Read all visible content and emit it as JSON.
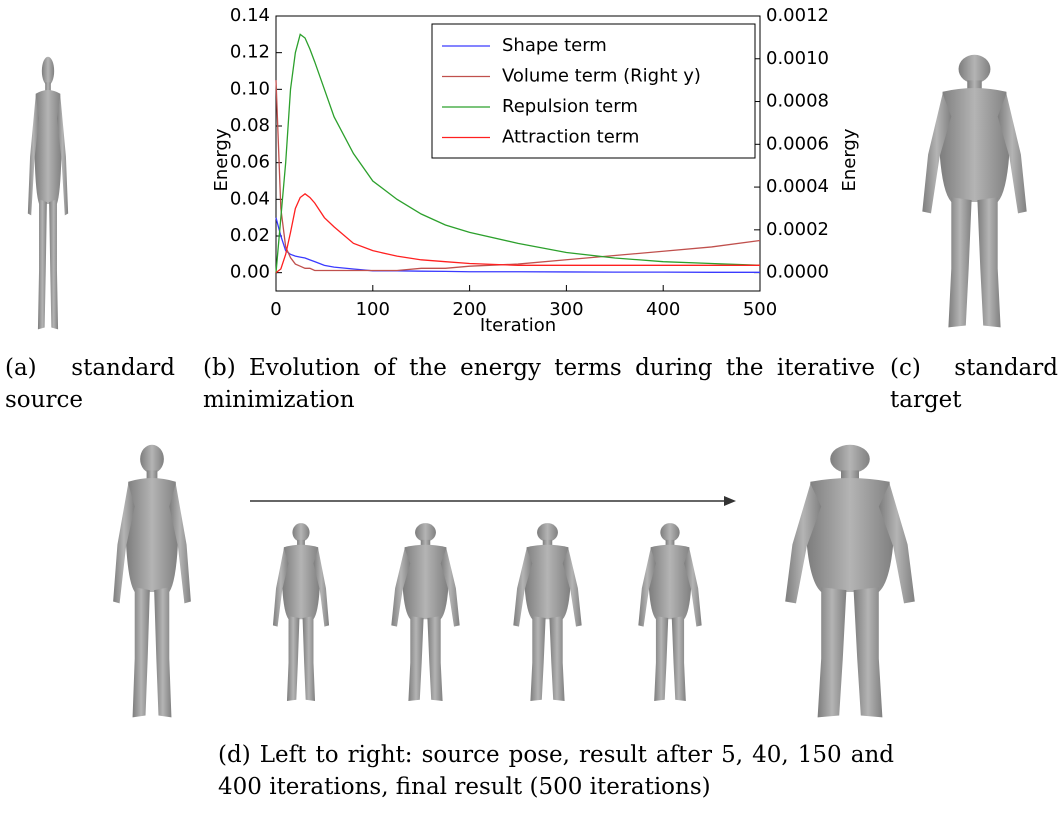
{
  "chart_data": {
    "type": "line",
    "x_label": "Iteration",
    "y_label": "Energy",
    "y2_label": "Energy",
    "x": [
      0,
      5,
      10,
      15,
      20,
      25,
      30,
      35,
      40,
      50,
      60,
      80,
      100,
      125,
      150,
      175,
      200,
      250,
      300,
      350,
      400,
      450,
      500
    ],
    "series": [
      {
        "name": "Shape term",
        "color": "#3a3aff",
        "values": [
          0.03,
          0.02,
          0.012,
          0.01,
          0.009,
          0.0085,
          0.008,
          0.007,
          0.006,
          0.004,
          0.003,
          0.002,
          0.001,
          0.001,
          0.0008,
          0.0007,
          0.0005,
          0.0005,
          0.0004,
          0.0003,
          0.0003,
          0.0002,
          0.0002
        ]
      },
      {
        "name": "Volume term (Right y)",
        "color": "#c0504d",
        "axis": "y2",
        "values": [
          0.0009,
          0.0003,
          0.00012,
          7e-05,
          4e-05,
          3e-05,
          2e-05,
          2e-05,
          1e-05,
          1e-05,
          1e-05,
          1e-05,
          1e-05,
          1e-05,
          2e-05,
          2e-05,
          3e-05,
          4e-05,
          6e-05,
          8e-05,
          0.0001,
          0.00012,
          0.00015
        ]
      },
      {
        "name": "Repulsion term",
        "color": "#2ca02c",
        "values": [
          0.0,
          0.03,
          0.06,
          0.1,
          0.12,
          0.13,
          0.128,
          0.122,
          0.115,
          0.1,
          0.085,
          0.065,
          0.05,
          0.04,
          0.032,
          0.026,
          0.022,
          0.016,
          0.011,
          0.008,
          0.006,
          0.005,
          0.004
        ]
      },
      {
        "name": "Attraction term",
        "color": "#ff2020",
        "values": [
          0.0,
          0.002,
          0.01,
          0.022,
          0.035,
          0.041,
          0.043,
          0.041,
          0.038,
          0.03,
          0.025,
          0.016,
          0.012,
          0.009,
          0.007,
          0.006,
          0.005,
          0.004,
          0.004,
          0.004,
          0.004,
          0.004,
          0.004
        ]
      }
    ],
    "xlim": [
      0,
      500
    ],
    "xticks": [
      0,
      100,
      200,
      300,
      400,
      500
    ],
    "ylim": [
      -0.01,
      0.14
    ],
    "yticks": [
      {
        "value": 0,
        "label": "0.00"
      },
      0.02,
      0.04,
      0.06,
      0.08,
      {
        "value": 0.1,
        "label": "0.10"
      },
      0.12,
      0.14
    ],
    "y2lim": [
      -8.6e-05,
      0.0012
    ],
    "y2ticks": [
      {
        "value": 0,
        "label": "0.0000"
      },
      0.0002,
      0.0004,
      0.0006,
      0.0008,
      {
        "value": 0.001,
        "label": "0.0010"
      },
      {
        "value": 0.0012,
        "label": "0.0012"
      }
    ],
    "legend": "upper right"
  },
  "captions": {
    "a": "(a) standard source",
    "b": "(b) Evolution of the energy terms during the iterative minimization",
    "c": "(c) standard target",
    "d": "(d) Left to right: source pose, result after 5, 40, 150 and 400 iterations, final result (500 iterations)"
  }
}
